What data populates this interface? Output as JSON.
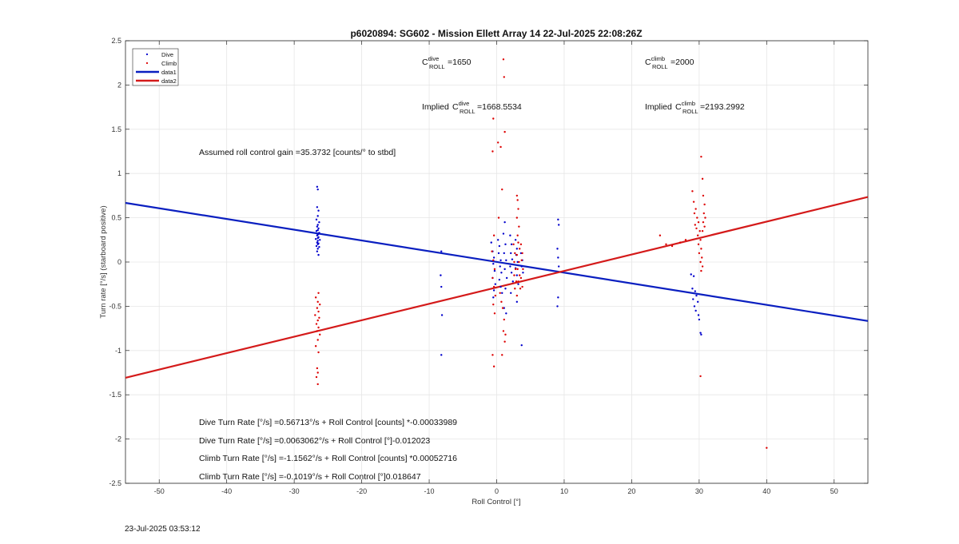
{
  "chart_data": {
    "type": "scatter",
    "title": "p6020894: SG602 - Mission Ellett Array 14 22-Jul-2025 22:08:26Z",
    "xlabel": "Roll Control [°]",
    "ylabel": "Turn rate [°/s] (starboard positive)",
    "xlim": [
      -55,
      55
    ],
    "ylim": [
      -2.5,
      2.5
    ],
    "xticks": [
      -50,
      -40,
      -30,
      -20,
      -10,
      0,
      10,
      20,
      30,
      40,
      50
    ],
    "yticks": [
      -2.5,
      -2,
      -1.5,
      -1,
      -0.5,
      0,
      0.5,
      1,
      1.5,
      2,
      2.5
    ],
    "grid": true,
    "legend_position": "top-left",
    "legend": [
      "Dive",
      "Climb",
      "data1",
      "data2"
    ],
    "colors": {
      "dive": "#0000cc",
      "climb": "#dd0000",
      "data1": "#0a1fc0",
      "data2": "#d41a1a"
    },
    "series": [
      {
        "name": "Dive",
        "kind": "points",
        "points": [
          [
            -26.6,
            0.85
          ],
          [
            -26.5,
            0.82
          ],
          [
            -26.6,
            0.62
          ],
          [
            -26.4,
            0.58
          ],
          [
            -26.5,
            0.52
          ],
          [
            -26.7,
            0.48
          ],
          [
            -26.3,
            0.45
          ],
          [
            -26.5,
            0.42
          ],
          [
            -26.6,
            0.4
          ],
          [
            -26.4,
            0.38
          ],
          [
            -26.5,
            0.36
          ],
          [
            -26.7,
            0.35
          ],
          [
            -26.3,
            0.33
          ],
          [
            -26.5,
            0.31
          ],
          [
            -26.6,
            0.3
          ],
          [
            -26.4,
            0.28
          ],
          [
            -26.5,
            0.27
          ],
          [
            -26.8,
            0.26
          ],
          [
            -26.2,
            0.25
          ],
          [
            -26.5,
            0.24
          ],
          [
            -26.6,
            0.22
          ],
          [
            -26.4,
            0.21
          ],
          [
            -26.5,
            0.2
          ],
          [
            -26.7,
            0.18
          ],
          [
            -26.3,
            0.17
          ],
          [
            -26.5,
            0.15
          ],
          [
            -26.6,
            0.12
          ],
          [
            -26.4,
            0.08
          ],
          [
            -8.2,
            0.12
          ],
          [
            -8.3,
            -0.15
          ],
          [
            -8.2,
            -0.28
          ],
          [
            -8.1,
            -0.6
          ],
          [
            -8.2,
            -1.05
          ],
          [
            -0.8,
            0.22
          ],
          [
            -0.6,
            0.12
          ],
          [
            -0.4,
            0.05
          ],
          [
            -0.5,
            -0.02
          ],
          [
            -0.3,
            -0.1
          ],
          [
            -0.6,
            -0.18
          ],
          [
            -0.2,
            -0.25
          ],
          [
            -0.4,
            -0.32
          ],
          [
            -0.5,
            -0.4
          ],
          [
            0.2,
            0.25
          ],
          [
            0.4,
            0.18
          ],
          [
            0.3,
            0.1
          ],
          [
            0.6,
            0.02
          ],
          [
            0.5,
            -0.05
          ],
          [
            0.7,
            -0.12
          ],
          [
            0.4,
            -0.2
          ],
          [
            0.6,
            -0.28
          ],
          [
            0.8,
            -0.35
          ],
          [
            1.2,
            0.45
          ],
          [
            1.0,
            0.32
          ],
          [
            1.3,
            0.2
          ],
          [
            1.1,
            0.1
          ],
          [
            1.4,
            0.02
          ],
          [
            1.2,
            -0.08
          ],
          [
            1.5,
            -0.18
          ],
          [
            1.3,
            -0.3
          ],
          [
            1.1,
            -0.52
          ],
          [
            1.4,
            -0.58
          ],
          [
            2.0,
            0.3
          ],
          [
            2.2,
            0.2
          ],
          [
            2.1,
            0.1
          ],
          [
            2.3,
            0.03
          ],
          [
            2.0,
            -0.05
          ],
          [
            2.2,
            -0.12
          ],
          [
            2.4,
            -0.22
          ],
          [
            2.1,
            -0.35
          ],
          [
            2.8,
            0.25
          ],
          [
            3.0,
            0.15
          ],
          [
            2.9,
            0.08
          ],
          [
            3.1,
            0.0
          ],
          [
            2.8,
            -0.07
          ],
          [
            3.0,
            -0.15
          ],
          [
            3.2,
            -0.25
          ],
          [
            3.0,
            -0.45
          ],
          [
            3.6,
            0.1
          ],
          [
            3.8,
            0.02
          ],
          [
            3.7,
            -0.05
          ],
          [
            3.9,
            -0.12
          ],
          [
            3.7,
            -0.94
          ],
          [
            9.1,
            0.48
          ],
          [
            9.2,
            0.42
          ],
          [
            9.0,
            0.15
          ],
          [
            9.1,
            0.05
          ],
          [
            9.2,
            -0.05
          ],
          [
            9.1,
            -0.4
          ],
          [
            9.0,
            -0.5
          ],
          [
            28.8,
            -0.14
          ],
          [
            29.2,
            -0.16
          ],
          [
            29.0,
            -0.3
          ],
          [
            29.4,
            -0.33
          ],
          [
            29.6,
            -0.38
          ],
          [
            29.1,
            -0.42
          ],
          [
            29.8,
            -0.45
          ],
          [
            29.3,
            -0.5
          ],
          [
            29.5,
            -0.55
          ],
          [
            29.9,
            -0.6
          ],
          [
            30.0,
            -0.65
          ],
          [
            30.2,
            -0.8
          ],
          [
            30.3,
            -0.82
          ]
        ]
      },
      {
        "name": "Climb",
        "kind": "points",
        "points": [
          [
            -26.4,
            -0.35
          ],
          [
            -26.8,
            -0.4
          ],
          [
            -26.5,
            -0.45
          ],
          [
            -26.2,
            -0.48
          ],
          [
            -26.6,
            -0.52
          ],
          [
            -26.4,
            -0.56
          ],
          [
            -26.9,
            -0.6
          ],
          [
            -26.3,
            -0.63
          ],
          [
            -26.5,
            -0.66
          ],
          [
            -26.7,
            -0.7
          ],
          [
            -26.4,
            -0.74
          ],
          [
            -26.6,
            -0.78
          ],
          [
            -26.2,
            -0.82
          ],
          [
            -26.5,
            -0.88
          ],
          [
            -26.8,
            -0.95
          ],
          [
            -26.4,
            -1.02
          ],
          [
            -26.6,
            -1.2
          ],
          [
            -26.5,
            -1.25
          ],
          [
            -26.7,
            -1.3
          ],
          [
            -26.5,
            -1.38
          ],
          [
            -0.5,
            1.62
          ],
          [
            -0.6,
            1.25
          ],
          [
            0.2,
            1.35
          ],
          [
            0.6,
            1.3
          ],
          [
            1.0,
            2.29
          ],
          [
            1.1,
            2.09
          ],
          [
            1.2,
            1.47
          ],
          [
            0.8,
            0.82
          ],
          [
            0.3,
            0.5
          ],
          [
            -0.4,
            0.3
          ],
          [
            -0.7,
            0.12
          ],
          [
            -0.5,
            0.02
          ],
          [
            -0.3,
            -0.08
          ],
          [
            -0.6,
            -0.18
          ],
          [
            -0.4,
            -0.28
          ],
          [
            -0.2,
            -0.38
          ],
          [
            -0.5,
            -0.48
          ],
          [
            -0.3,
            -0.58
          ],
          [
            -0.6,
            -1.05
          ],
          [
            -0.4,
            -1.18
          ],
          [
            0.5,
            -0.35
          ],
          [
            0.7,
            -0.45
          ],
          [
            0.9,
            -0.52
          ],
          [
            1.1,
            -0.65
          ],
          [
            1.0,
            -0.78
          ],
          [
            1.3,
            -0.82
          ],
          [
            0.8,
            -1.05
          ],
          [
            1.2,
            -0.9
          ],
          [
            2.5,
            0.2
          ],
          [
            2.7,
            0.1
          ],
          [
            2.6,
            0.0
          ],
          [
            2.8,
            -0.08
          ],
          [
            2.6,
            -0.15
          ],
          [
            2.9,
            -0.22
          ],
          [
            2.7,
            -0.3
          ],
          [
            3.0,
            0.75
          ],
          [
            3.1,
            0.7
          ],
          [
            3.2,
            0.6
          ],
          [
            3.0,
            0.5
          ],
          [
            3.3,
            0.4
          ],
          [
            3.1,
            0.3
          ],
          [
            3.2,
            0.22
          ],
          [
            3.4,
            0.15
          ],
          [
            3.0,
            0.08
          ],
          [
            3.3,
            0.0
          ],
          [
            3.1,
            -0.08
          ],
          [
            3.4,
            -0.15
          ],
          [
            3.2,
            -0.22
          ],
          [
            3.5,
            -0.3
          ],
          [
            3.0,
            -0.38
          ],
          [
            3.6,
            0.2
          ],
          [
            3.8,
            0.1
          ],
          [
            3.7,
            0.02
          ],
          [
            3.9,
            -0.08
          ],
          [
            3.6,
            -0.18
          ],
          [
            3.8,
            -0.28
          ],
          [
            24.2,
            0.3
          ],
          [
            25.1,
            0.2
          ],
          [
            26.0,
            0.18
          ],
          [
            27.2,
            0.22
          ],
          [
            28.0,
            0.25
          ],
          [
            29.0,
            0.8
          ],
          [
            29.2,
            0.68
          ],
          [
            29.5,
            0.6
          ],
          [
            29.3,
            0.55
          ],
          [
            29.7,
            0.5
          ],
          [
            29.9,
            0.45
          ],
          [
            29.4,
            0.42
          ],
          [
            29.6,
            0.38
          ],
          [
            30.1,
            0.35
          ],
          [
            29.8,
            0.3
          ],
          [
            30.2,
            0.25
          ],
          [
            29.9,
            0.2
          ],
          [
            30.3,
            0.15
          ],
          [
            30.0,
            0.1
          ],
          [
            30.4,
            0.05
          ],
          [
            30.2,
            0.0
          ],
          [
            30.5,
            -0.05
          ],
          [
            30.3,
            -0.1
          ],
          [
            30.3,
            1.19
          ],
          [
            30.5,
            0.94
          ],
          [
            30.6,
            0.75
          ],
          [
            30.8,
            0.65
          ],
          [
            30.7,
            0.55
          ],
          [
            30.9,
            0.5
          ],
          [
            30.6,
            0.45
          ],
          [
            30.8,
            0.4
          ],
          [
            30.5,
            0.35
          ],
          [
            30.2,
            -1.29
          ],
          [
            40.0,
            -2.1
          ]
        ]
      },
      {
        "name": "data1",
        "kind": "line",
        "x": [
          -55,
          55
        ],
        "y": [
          0.668,
          -0.666
        ]
      },
      {
        "name": "data2",
        "kind": "line",
        "x": [
          -55,
          55
        ],
        "y": [
          -1.308,
          0.735
        ]
      }
    ],
    "annotations": [
      {
        "id": "cdive",
        "text": "=1650"
      },
      {
        "id": "cclimb",
        "text": "=2000"
      },
      {
        "id": "impl_dive",
        "text": "=1668.5534"
      },
      {
        "id": "impl_climb",
        "text": "=2193.2992"
      },
      {
        "id": "gain",
        "text": "Assumed roll control gain =35.3732 [counts/° to stbd]"
      },
      {
        "id": "eq1",
        "text": "Dive Turn Rate [°/s] =0.56713°/s + Roll Control [counts] *-0.00033989"
      },
      {
        "id": "eq2",
        "text": "Dive Turn Rate [°/s] =0.0063062°/s + Roll Control [°]-0.012023"
      },
      {
        "id": "eq3",
        "text": "Climb Turn Rate [°/s] =-1.1562°/s + Roll Control [counts] *0.00052716"
      },
      {
        "id": "eq4",
        "text": "Climb Turn Rate [°/s] =-0.1019°/s + Roll Control [°]0.018647"
      }
    ],
    "symbols": {
      "C": "C",
      "roll": "ROLL",
      "dive": "dive",
      "climb": "climb",
      "implied": "Implied "
    }
  },
  "timestamp": "23-Jul-2025 03:53:12"
}
